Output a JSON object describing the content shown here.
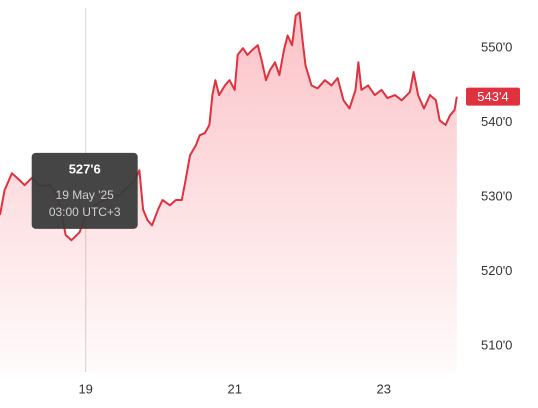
{
  "chart_data": {
    "type": "area",
    "x": [
      17.85,
      17.91,
      18.01,
      18.11,
      18.18,
      18.28,
      18.38,
      18.52,
      18.62,
      18.68,
      18.73,
      18.81,
      18.92,
      19.0,
      19.12,
      19.25,
      19.46,
      19.66,
      19.72,
      19.77,
      19.83,
      19.89,
      19.97,
      20.03,
      20.13,
      20.21,
      20.29,
      20.34,
      20.4,
      20.48,
      20.53,
      20.6,
      20.66,
      20.7,
      20.74,
      20.79,
      20.87,
      20.93,
      21.0,
      21.04,
      21.11,
      21.17,
      21.23,
      21.31,
      21.36,
      21.42,
      21.47,
      21.54,
      21.6,
      21.66,
      21.71,
      21.77,
      21.82,
      21.87,
      21.91,
      21.95,
      22.03,
      22.11,
      22.21,
      22.3,
      22.38,
      22.46,
      22.54,
      22.62,
      22.66,
      22.7,
      22.79,
      22.88,
      22.97,
      23.05,
      23.15,
      23.24,
      23.35,
      23.4,
      23.46,
      23.54,
      23.62,
      23.7,
      23.75,
      23.83,
      23.89,
      23.95,
      23.98
    ],
    "values": [
      527.6,
      530.9,
      533.2,
      532.3,
      531.6,
      532.6,
      531.5,
      531.6,
      530.3,
      527.6,
      524.9,
      524.2,
      525.3,
      527.75,
      528.9,
      529.6,
      530.3,
      532.3,
      533.6,
      528.3,
      526.9,
      526.2,
      528.3,
      529.6,
      528.9,
      529.6,
      529.6,
      532.3,
      535.6,
      537.0,
      538.3,
      538.6,
      539.7,
      543.7,
      545.7,
      543.7,
      545.0,
      545.7,
      544.4,
      549.1,
      550.0,
      549.1,
      549.7,
      550.4,
      548.4,
      545.7,
      547.0,
      548.1,
      546.4,
      549.7,
      551.7,
      550.4,
      554.4,
      554.8,
      551.1,
      547.7,
      545.0,
      544.6,
      545.7,
      545.0,
      546.0,
      543.0,
      541.9,
      544.4,
      548.1,
      544.4,
      545.0,
      543.7,
      544.4,
      543.3,
      543.7,
      543.0,
      544.1,
      546.8,
      543.7,
      541.9,
      543.7,
      543.0,
      540.3,
      539.7,
      541.0,
      541.7,
      543.5
    ],
    "color": "#e0313f",
    "xlim": [
      17.85,
      24.09
    ],
    "xticks": [
      19,
      21,
      23
    ],
    "ylim": [
      506.5,
      555.4
    ],
    "yticks": [
      {
        "value": 510,
        "label": "510'0"
      },
      {
        "value": 520,
        "label": "520'0"
      },
      {
        "value": 530,
        "label": "530'0"
      },
      {
        "value": 540,
        "label": "540'0"
      },
      {
        "value": 550,
        "label": "550'0"
      }
    ],
    "last_price": {
      "value": 543.5,
      "label": "543'4"
    },
    "tooltip": {
      "x": 19.0,
      "value": 527.75,
      "value_label": "527'6",
      "date": "19 May '25",
      "time": "03:00 UTC+3"
    }
  }
}
